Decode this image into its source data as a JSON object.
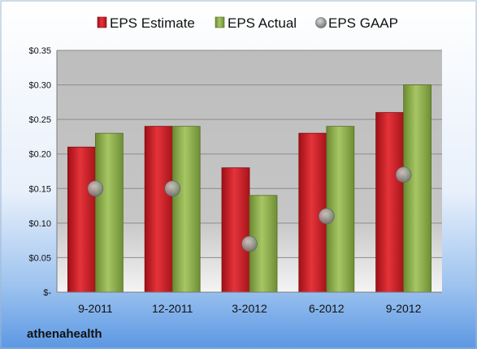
{
  "chart_data": {
    "type": "bar",
    "categories": [
      "9-2011",
      "12-2011",
      "3-2012",
      "6-2012",
      "9-2012"
    ],
    "series": [
      {
        "name": "EPS Estimate",
        "type": "bar",
        "color": "#cc1f26",
        "values": [
          0.21,
          0.24,
          0.18,
          0.23,
          0.26
        ]
      },
      {
        "name": "EPS Actual",
        "type": "bar",
        "color": "#8db04a",
        "values": [
          0.23,
          0.24,
          0.14,
          0.24,
          0.3
        ]
      },
      {
        "name": "EPS GAAP",
        "type": "scatter",
        "color": "#a8a8a8",
        "values": [
          0.15,
          0.15,
          0.07,
          0.11,
          0.17
        ]
      }
    ],
    "ylim": [
      0,
      0.35
    ],
    "yticks": [
      0,
      0.05,
      0.1,
      0.15,
      0.2,
      0.25,
      0.3,
      0.35
    ],
    "ytick_labels": [
      "$-",
      "$0.05",
      "$0.10",
      "$0.15",
      "$0.20",
      "$0.25",
      "$0.30",
      "$0.35"
    ],
    "grid": true,
    "legend_position": "top"
  },
  "company": "athenahealth"
}
